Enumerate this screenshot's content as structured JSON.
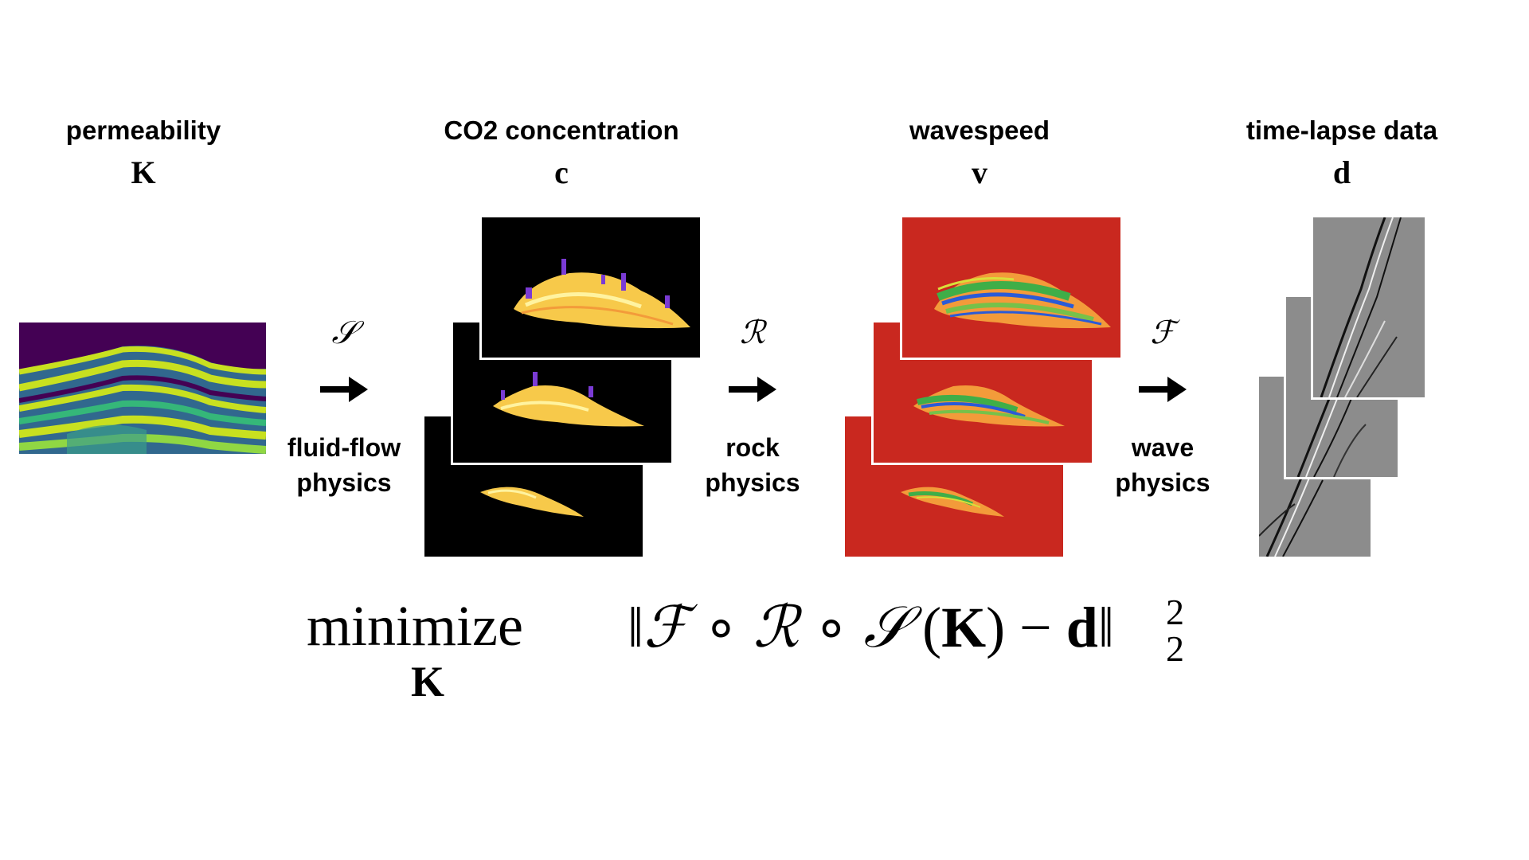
{
  "stages": [
    {
      "title": "permeability",
      "symbol": "K"
    },
    {
      "title": "CO2 concentration",
      "symbol": "c"
    },
    {
      "title": "wavespeed",
      "symbol": "v"
    },
    {
      "title": "time-lapse data",
      "symbol": "d"
    }
  ],
  "operators": [
    {
      "symbol": "𝒮",
      "line1": "fluid-flow",
      "line2": "physics"
    },
    {
      "symbol": "ℛ",
      "line1": "rock",
      "line2": "physics"
    },
    {
      "symbol": "ℱ",
      "line1": "wave",
      "line2": "physics"
    }
  ],
  "formula": {
    "minimize": "minimize",
    "subscript": "K",
    "open_norm": "‖",
    "F": "ℱ",
    "circ1": "∘",
    "R": "ℛ",
    "circ2": "∘",
    "S": "𝒮",
    "open_paren": "(",
    "K": "K",
    "close_paren": ")",
    "minus": "−",
    "d": "d",
    "close_norm": "‖",
    "sup": "2",
    "sub": "2"
  },
  "colors": {
    "background": "#ffffff",
    "viridis_dark": "#440154",
    "viridis_yellow": "#c8e020",
    "co2_background": "#000000",
    "co2_plume": "#f7c94a",
    "wavespeed_background": "#c9281f",
    "seismic_gray": "#8c8c8c"
  }
}
